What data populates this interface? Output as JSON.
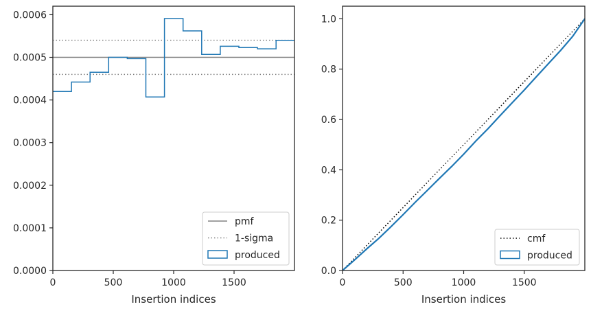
{
  "chart_data": [
    {
      "type": "line",
      "panel": "left",
      "xlabel": "Insertion indices",
      "ylabel": "",
      "xlim": [
        0,
        2000
      ],
      "ylim": [
        0,
        0.00062
      ],
      "xticks": [
        0,
        500,
        1000,
        1500
      ],
      "xtick_labels": [
        "0",
        "500",
        "1000",
        "1500"
      ],
      "yticks": [
        0,
        0.0001,
        0.0002,
        0.0003,
        0.0004,
        0.0005,
        0.0006
      ],
      "ytick_labels": [
        "0.0000",
        "0.0001",
        "0.0002",
        "0.0003",
        "0.0004",
        "0.0005",
        "0.0006"
      ],
      "legend_position": "lower right",
      "grid": false,
      "series": [
        {
          "name": "pmf",
          "kind": "hline",
          "y": 0.0005,
          "color": "#808080",
          "style": "solid"
        },
        {
          "name": "1-sigma",
          "kind": "hlines",
          "y": [
            0.00054,
            0.00046
          ],
          "color": "#808080",
          "style": "dotted"
        },
        {
          "name": "produced",
          "kind": "step",
          "color": "#1f77b4",
          "bin_edges": [
            0,
            154,
            308,
            462,
            616,
            770,
            924,
            1078,
            1232,
            1386,
            1540,
            1694,
            1848,
            2000
          ],
          "values": [
            0.00042,
            0.000442,
            0.000465,
            0.0005,
            0.000497,
            0.000407,
            0.000591,
            0.000562,
            0.000507,
            0.000526,
            0.000523,
            0.00052,
            0.00054
          ]
        }
      ]
    },
    {
      "type": "line",
      "panel": "right",
      "xlabel": "Insertion indices",
      "ylabel": "",
      "xlim": [
        0,
        2000
      ],
      "ylim": [
        0,
        1.05
      ],
      "xticks": [
        0,
        500,
        1000,
        1500
      ],
      "xtick_labels": [
        "0",
        "500",
        "1000",
        "1500"
      ],
      "yticks": [
        0,
        0.2,
        0.4,
        0.6,
        0.8,
        1.0
      ],
      "ytick_labels": [
        "0.0",
        "0.2",
        "0.4",
        "0.6",
        "0.8",
        "1.0"
      ],
      "legend_position": "lower right",
      "grid": false,
      "series": [
        {
          "name": "cmf",
          "kind": "line",
          "color": "#000000",
          "style": "dotted",
          "x": [
            0,
            2000
          ],
          "y": [
            0,
            1.0
          ]
        },
        {
          "name": "produced",
          "kind": "step",
          "color": "#1f77b4",
          "x": [
            0,
            100,
            200,
            300,
            400,
            500,
            600,
            700,
            800,
            900,
            1000,
            1100,
            1200,
            1300,
            1400,
            1500,
            1600,
            1700,
            1800,
            1900,
            2000
          ],
          "y": [
            0,
            0.042,
            0.086,
            0.128,
            0.174,
            0.222,
            0.271,
            0.318,
            0.366,
            0.413,
            0.462,
            0.514,
            0.563,
            0.615,
            0.666,
            0.717,
            0.77,
            0.822,
            0.874,
            0.93,
            1.0
          ]
        }
      ]
    }
  ]
}
